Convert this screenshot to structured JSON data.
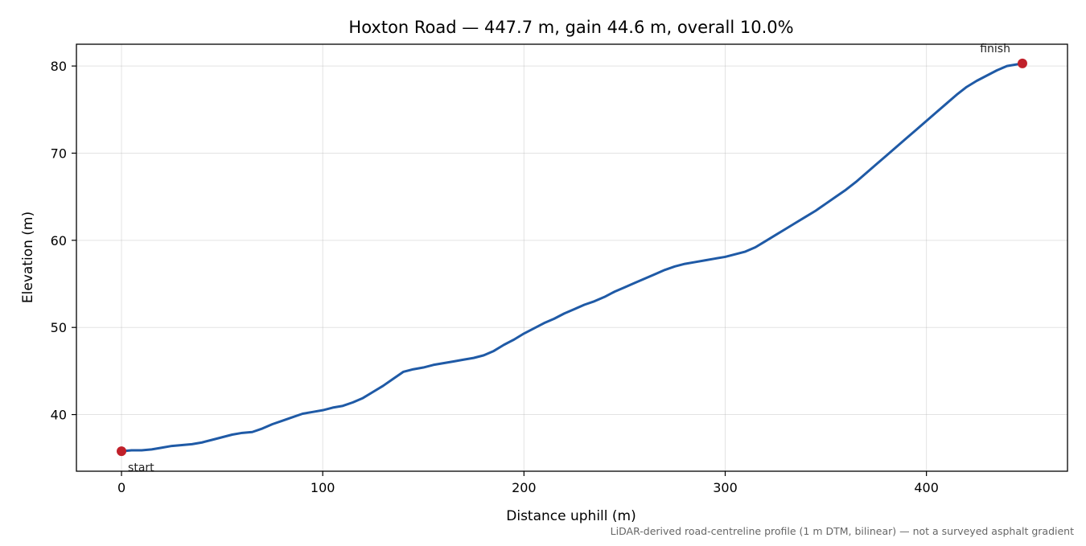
{
  "chart_data": {
    "type": "line",
    "title": "Hoxton Road — 447.7 m, gain 44.6 m, overall 10.0%",
    "xlabel": "Distance uphill (m)",
    "ylabel": "Elevation (m)",
    "xlim": [
      -22.4,
      470.1
    ],
    "ylim": [
      33.5,
      82.5
    ],
    "xticks": [
      0,
      100,
      200,
      300,
      400
    ],
    "yticks": [
      40,
      50,
      60,
      70,
      80
    ],
    "grid": true,
    "caption": "LiDAR-derived road-centreline profile (1 m DTM, bilinear) — not a surveyed asphalt gradient",
    "series": [
      {
        "name": "",
        "color": "#1f5aa6",
        "x": [
          0,
          5,
          10,
          15,
          20,
          25,
          30,
          35,
          40,
          45,
          50,
          55,
          60,
          65,
          70,
          75,
          80,
          85,
          90,
          95,
          100,
          105,
          110,
          115,
          120,
          125,
          130,
          135,
          140,
          145,
          150,
          155,
          160,
          165,
          170,
          175,
          180,
          185,
          190,
          195,
          200,
          205,
          210,
          215,
          220,
          225,
          230,
          235,
          240,
          245,
          250,
          255,
          260,
          265,
          270,
          275,
          280,
          285,
          290,
          295,
          300,
          305,
          310,
          315,
          320,
          325,
          330,
          335,
          340,
          345,
          350,
          355,
          360,
          365,
          370,
          375,
          380,
          385,
          390,
          395,
          400,
          405,
          410,
          415,
          420,
          425,
          430,
          435,
          440,
          447.7
        ],
        "y": [
          35.8,
          35.9,
          35.9,
          36.0,
          36.2,
          36.4,
          36.5,
          36.6,
          36.8,
          37.1,
          37.4,
          37.7,
          37.9,
          38.0,
          38.4,
          38.9,
          39.3,
          39.7,
          40.1,
          40.3,
          40.5,
          40.8,
          41.0,
          41.4,
          41.9,
          42.6,
          43.3,
          44.1,
          44.9,
          45.2,
          45.4,
          45.7,
          45.9,
          46.1,
          46.3,
          46.5,
          46.8,
          47.3,
          48.0,
          48.6,
          49.3,
          49.9,
          50.5,
          51.0,
          51.6,
          52.1,
          52.6,
          53.0,
          53.5,
          54.1,
          54.6,
          55.1,
          55.6,
          56.1,
          56.6,
          57.0,
          57.3,
          57.5,
          57.7,
          57.9,
          58.1,
          58.4,
          58.7,
          59.2,
          59.9,
          60.6,
          61.3,
          62.0,
          62.7,
          63.4,
          64.2,
          65.0,
          65.8,
          66.7,
          67.7,
          68.7,
          69.7,
          70.7,
          71.7,
          72.7,
          73.7,
          74.7,
          75.7,
          76.7,
          77.6,
          78.3,
          78.9,
          79.5,
          80.0,
          80.3
        ]
      }
    ],
    "points": [
      {
        "name": "start",
        "x": 0,
        "y": 35.8,
        "label": "start",
        "color": "#c0202a"
      },
      {
        "name": "finish",
        "x": 447.7,
        "y": 80.3,
        "label": "finish",
        "color": "#c0202a"
      }
    ]
  }
}
